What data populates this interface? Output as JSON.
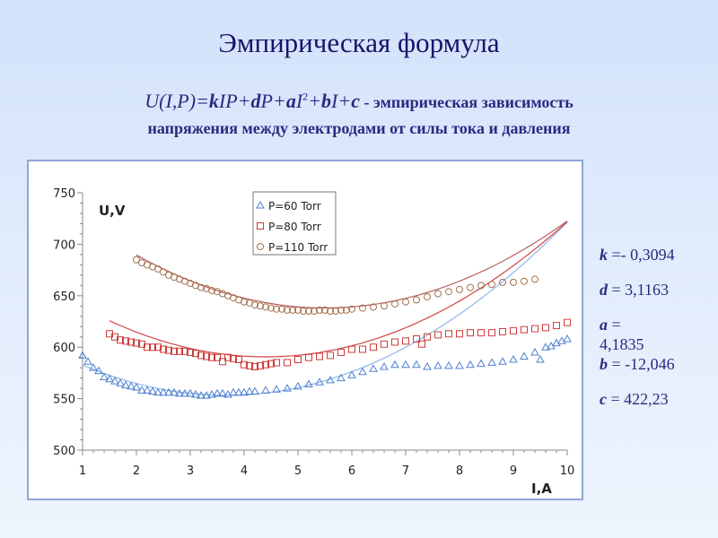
{
  "title": "Эмпирическая формула",
  "formula": {
    "lhs": "U(I,P)=",
    "parts": [
      "k",
      "IP+",
      "d",
      "P+",
      "a",
      "I",
      "2",
      "+",
      "b",
      "I+",
      "c"
    ],
    "desc": " - эмпирическая зависимость"
  },
  "subtitle": "напряжения между электродами от силы тока и давления",
  "params": [
    {
      "name": "k",
      "value": "=- 0,3094"
    },
    {
      "name": "d",
      "value": "= 3,1163"
    },
    {
      "name": "a",
      "value": "="
    },
    {
      "name": "a_value",
      "value": "4,1835"
    },
    {
      "name": "b",
      "value": "= -12,046"
    },
    {
      "name": "c",
      "value": "= 422,23"
    }
  ],
  "coefficients": {
    "k": -0.3094,
    "d": 3.1163,
    "a": 4.1835,
    "b": -12.046,
    "c": 422.23
  },
  "chart_data": {
    "type": "scatter",
    "xlabel": "I,A",
    "ylabel": "U,V",
    "xlim": [
      1,
      10
    ],
    "ylim": [
      500,
      750
    ],
    "xticks": [
      "1",
      "2",
      "3",
      "4",
      "5",
      "6",
      "7",
      "8",
      "9",
      "10"
    ],
    "yticks": [
      "500",
      "550",
      "600",
      "650",
      "700",
      "750"
    ],
    "legend_position": "top-center",
    "series": [
      {
        "name": "P=60 Torr",
        "pressure": 60,
        "marker": "triangle",
        "color": "#4f80d0",
        "fit_color": "#8cb6e6",
        "fit_range": [
          1,
          10
        ],
        "x": [
          1.0,
          1.1,
          1.2,
          1.3,
          1.4,
          1.5,
          1.6,
          1.7,
          1.8,
          1.9,
          2.0,
          2.1,
          2.2,
          2.3,
          2.4,
          2.5,
          2.6,
          2.7,
          2.8,
          2.9,
          3.0,
          3.1,
          3.2,
          3.3,
          3.4,
          3.5,
          3.6,
          3.7,
          3.8,
          3.9,
          4.0,
          4.1,
          4.2,
          4.4,
          4.6,
          4.8,
          5.0,
          5.2,
          5.4,
          5.6,
          5.8,
          6.0,
          6.2,
          6.4,
          6.6,
          6.8,
          7.0,
          7.2,
          7.4,
          7.6,
          7.8,
          8.0,
          8.2,
          8.4,
          8.6,
          8.8,
          9.0,
          9.2,
          9.4,
          9.5,
          9.6,
          9.7,
          9.8,
          9.9,
          10.0
        ],
        "y": [
          592,
          586,
          580,
          577,
          571,
          569,
          567,
          565,
          563,
          562,
          561,
          558,
          558,
          557,
          556,
          556,
          556,
          556,
          555,
          555,
          555,
          554,
          553,
          553,
          554,
          555,
          555,
          554,
          556,
          556,
          556,
          557,
          557,
          558,
          559,
          560,
          562,
          564,
          566,
          568,
          570,
          573,
          576,
          579,
          581,
          583,
          583,
          583,
          581,
          582,
          582,
          582,
          583,
          584,
          585,
          586,
          588,
          591,
          595,
          588,
          600,
          601,
          604,
          606,
          608
        ]
      },
      {
        "name": "P=80 Torr",
        "pressure": 80,
        "marker": "square",
        "color": "#d03a3a",
        "fit_color": "#d04444",
        "fit_range": [
          1.5,
          10
        ],
        "x": [
          1.5,
          1.6,
          1.7,
          1.8,
          1.9,
          2.0,
          2.1,
          2.2,
          2.3,
          2.4,
          2.5,
          2.6,
          2.7,
          2.8,
          2.9,
          3.0,
          3.1,
          3.2,
          3.3,
          3.4,
          3.5,
          3.6,
          3.7,
          3.8,
          3.9,
          4.0,
          4.1,
          4.2,
          4.3,
          4.4,
          4.5,
          4.6,
          4.8,
          5.0,
          5.2,
          5.4,
          5.6,
          5.8,
          6.0,
          6.2,
          6.4,
          6.6,
          6.8,
          7.0,
          7.2,
          7.3,
          7.4,
          7.6,
          7.8,
          8.0,
          8.2,
          8.4,
          8.6,
          8.8,
          9.0,
          9.2,
          9.4,
          9.6,
          9.8,
          10.0
        ],
        "y": [
          613,
          610,
          607,
          606,
          605,
          604,
          603,
          600,
          600,
          600,
          598,
          597,
          596,
          596,
          596,
          595,
          594,
          592,
          591,
          590,
          590,
          586,
          590,
          589,
          588,
          583,
          582,
          581,
          582,
          583,
          584,
          585,
          585,
          588,
          590,
          591,
          592,
          595,
          598,
          598,
          600,
          603,
          605,
          606,
          608,
          603,
          610,
          612,
          613,
          613,
          614,
          614,
          614,
          615,
          616,
          617,
          618,
          619,
          621,
          624
        ]
      },
      {
        "name": "P=110 Torr",
        "pressure": 110,
        "marker": "circle",
        "color": "#a4704c",
        "fit_color": "#b86060",
        "fit_range": [
          2,
          10
        ],
        "x": [
          2.0,
          2.1,
          2.2,
          2.3,
          2.4,
          2.5,
          2.6,
          2.7,
          2.8,
          2.9,
          3.0,
          3.1,
          3.2,
          3.3,
          3.4,
          3.5,
          3.6,
          3.7,
          3.8,
          3.9,
          4.0,
          4.1,
          4.2,
          4.3,
          4.4,
          4.5,
          4.6,
          4.7,
          4.8,
          4.9,
          5.0,
          5.1,
          5.2,
          5.3,
          5.4,
          5.5,
          5.6,
          5.7,
          5.8,
          5.9,
          6.0,
          6.2,
          6.4,
          6.6,
          6.8,
          7.0,
          7.2,
          7.4,
          7.6,
          7.8,
          8.0,
          8.2,
          8.4,
          8.6,
          8.8,
          9.0,
          9.2,
          9.4
        ],
        "y": [
          685,
          682,
          680,
          678,
          676,
          673,
          670,
          668,
          666,
          664,
          662,
          660,
          658,
          657,
          655,
          654,
          652,
          650,
          648,
          646,
          644,
          643,
          641,
          640,
          639,
          638,
          637,
          637,
          636,
          636,
          636,
          635,
          635,
          635,
          636,
          636,
          635,
          635,
          636,
          636,
          637,
          638,
          639,
          640,
          642,
          644,
          646,
          649,
          652,
          654,
          656,
          658,
          660,
          661,
          663,
          663,
          664,
          666
        ]
      }
    ]
  }
}
